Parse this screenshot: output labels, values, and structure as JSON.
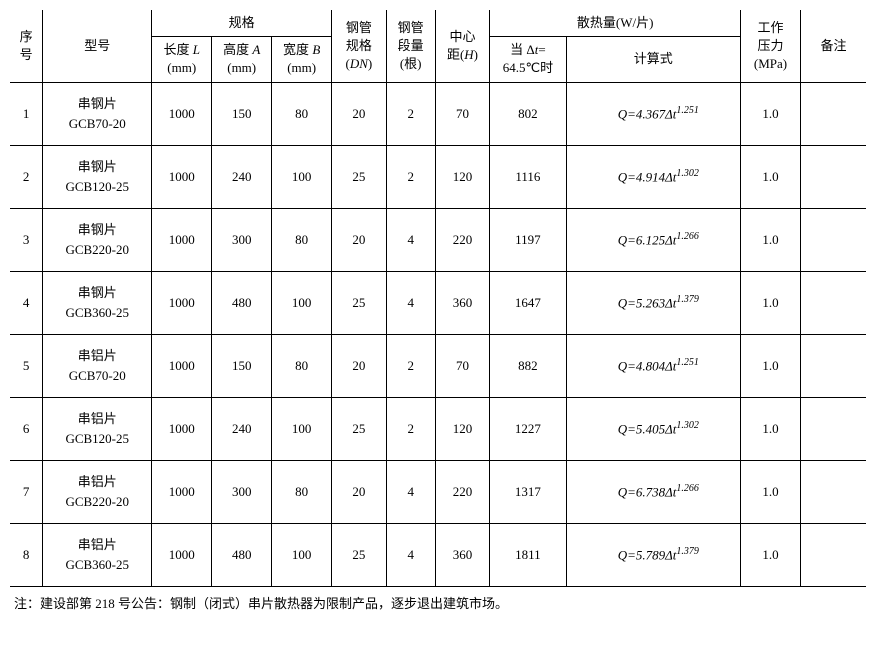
{
  "headers": {
    "seq": "序号",
    "model": "型号",
    "spec": "规格",
    "length": "长度 L\n(mm)",
    "height": "高度 A\n(mm)",
    "width": "宽度 B\n(mm)",
    "pipe_spec": "钢管规格\n(DN)",
    "pipe_count": "钢管段量\n(根)",
    "center_dist": "中心距(H)",
    "heat": "散热量(W/片)",
    "heat_at": "当 Δt=\n64.5℃时",
    "formula": "计算式",
    "pressure": "工作压力\n(MPa)",
    "remark": "备注"
  },
  "rows": [
    {
      "seq": "1",
      "model_a": "串钢片",
      "model_b": "GCB70-20",
      "len": "1000",
      "h": "150",
      "w": "80",
      "dn": "20",
      "seg": "2",
      "cd": "70",
      "heat": "802",
      "fc": "4.367",
      "fe": "1.251",
      "press": "1.0",
      "rem": ""
    },
    {
      "seq": "2",
      "model_a": "串钢片",
      "model_b": "GCB120-25",
      "len": "1000",
      "h": "240",
      "w": "100",
      "dn": "25",
      "seg": "2",
      "cd": "120",
      "heat": "1116",
      "fc": "4.914",
      "fe": "1.302",
      "press": "1.0",
      "rem": ""
    },
    {
      "seq": "3",
      "model_a": "串钢片",
      "model_b": "GCB220-20",
      "len": "1000",
      "h": "300",
      "w": "80",
      "dn": "20",
      "seg": "4",
      "cd": "220",
      "heat": "1197",
      "fc": "6.125",
      "fe": "1.266",
      "press": "1.0",
      "rem": ""
    },
    {
      "seq": "4",
      "model_a": "串钢片",
      "model_b": "GCB360-25",
      "len": "1000",
      "h": "480",
      "w": "100",
      "dn": "25",
      "seg": "4",
      "cd": "360",
      "heat": "1647",
      "fc": "5.263",
      "fe": "1.379",
      "press": "1.0",
      "rem": ""
    },
    {
      "seq": "5",
      "model_a": "串铝片",
      "model_b": "GCB70-20",
      "len": "1000",
      "h": "150",
      "w": "80",
      "dn": "20",
      "seg": "2",
      "cd": "70",
      "heat": "882",
      "fc": "4.804",
      "fe": "1.251",
      "press": "1.0",
      "rem": ""
    },
    {
      "seq": "6",
      "model_a": "串铝片",
      "model_b": "GCB120-25",
      "len": "1000",
      "h": "240",
      "w": "100",
      "dn": "25",
      "seg": "2",
      "cd": "120",
      "heat": "1227",
      "fc": "5.405",
      "fe": "1.302",
      "press": "1.0",
      "rem": ""
    },
    {
      "seq": "7",
      "model_a": "串铝片",
      "model_b": "GCB220-20",
      "len": "1000",
      "h": "300",
      "w": "80",
      "dn": "20",
      "seg": "4",
      "cd": "220",
      "heat": "1317",
      "fc": "6.738",
      "fe": "1.266",
      "press": "1.0",
      "rem": ""
    },
    {
      "seq": "8",
      "model_a": "串铝片",
      "model_b": "GCB360-25",
      "len": "1000",
      "h": "480",
      "w": "100",
      "dn": "25",
      "seg": "4",
      "cd": "360",
      "heat": "1811",
      "fc": "5.789",
      "fe": "1.379",
      "press": "1.0",
      "rem": ""
    }
  ],
  "note": "注：建设部第 218 号公告：钢制（闭式）串片散热器为限制产品，逐步退出建筑市场。",
  "col_widths": {
    "seq": 30,
    "model": 100,
    "len": 55,
    "h": 55,
    "w": 55,
    "dn": 50,
    "seg": 45,
    "cd": 50,
    "heat": 70,
    "formula": 160,
    "press": 55,
    "rem": 60
  }
}
